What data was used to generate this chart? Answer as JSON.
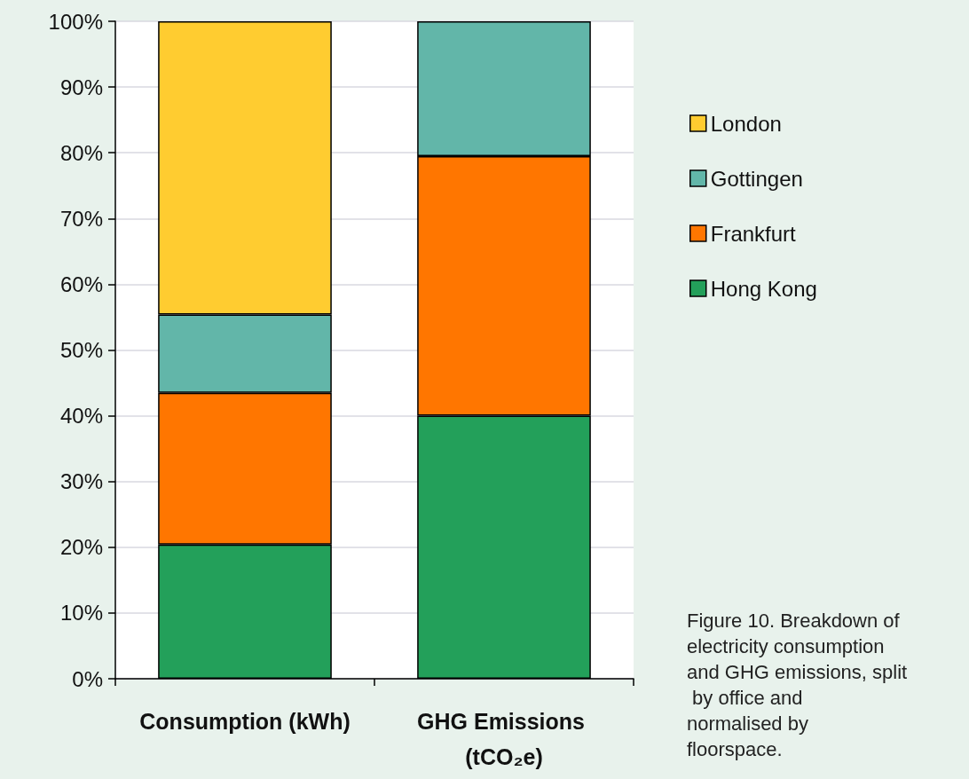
{
  "chart_data": {
    "type": "bar",
    "stacked": true,
    "categories": [
      "Consumption (kWh)",
      "GHG Emissions (tCO₂e)"
    ],
    "series": [
      {
        "name": "Hong Kong",
        "color": "#23a05a",
        "values": [
          20.4,
          40
        ]
      },
      {
        "name": "Frankfurt",
        "color": "#ff7600",
        "values": [
          23.1,
          39.5
        ]
      },
      {
        "name": "Gottingen",
        "color": "#62b6a9",
        "values": [
          11.9,
          20.5
        ]
      },
      {
        "name": "London",
        "color": "#ffcc30",
        "values": [
          44.6,
          null
        ]
      }
    ],
    "ylim": [
      0,
      100
    ],
    "yticks": [
      {
        "value": 0,
        "label": "0%"
      },
      {
        "value": 10,
        "label": "10%"
      },
      {
        "value": 20,
        "label": "20%"
      },
      {
        "value": 30,
        "label": "30%"
      },
      {
        "value": 40,
        "label": "40%"
      },
      {
        "value": 50,
        "label": "50%"
      },
      {
        "value": 60,
        "label": "60%"
      },
      {
        "value": 70,
        "label": "70%"
      },
      {
        "value": 80,
        "label": "80%"
      },
      {
        "value": 90,
        "label": "90%"
      },
      {
        "value": 100,
        "label": "100%"
      }
    ],
    "grid": "y",
    "legend": "right",
    "annotations": [
      "Figure 10. Breakdown of electricity consumption and GHG emissions, split by office and normalised by floorspace."
    ]
  }
}
